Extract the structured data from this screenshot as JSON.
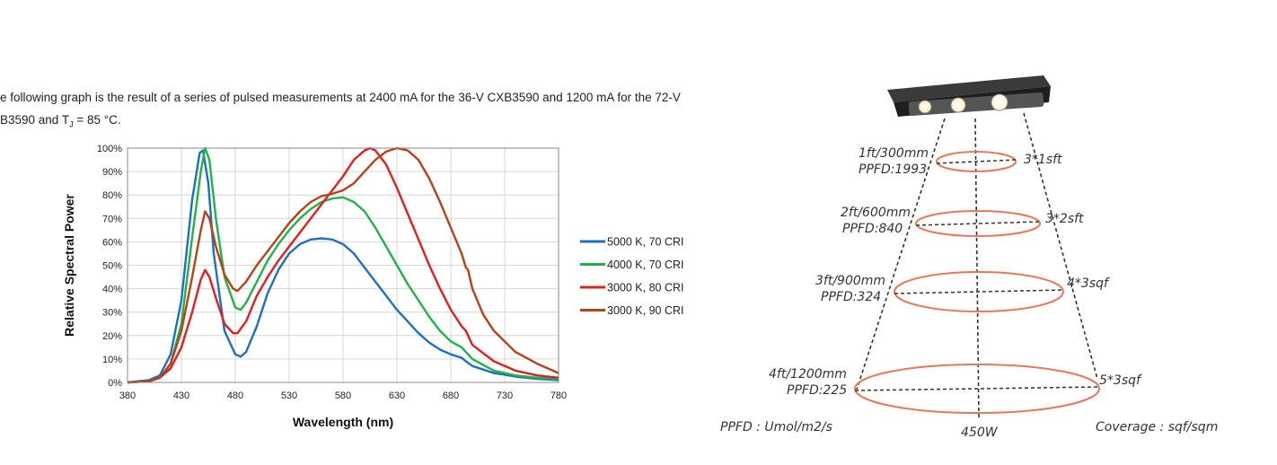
{
  "intro": {
    "line1": "e following graph is the result of a series of pulsed measurements at 2400 mA for the 36-V CXB3590 and 1200 mA for the 72-V",
    "line2_prefix": "B3590 and T",
    "line2_sub": "J",
    "line2_suffix": " = 85 °C."
  },
  "chart_data": {
    "type": "line",
    "xlabel": "Wavelength (nm)",
    "ylabel": "Relative Spectral Power",
    "xlim": [
      380,
      780
    ],
    "ylim": [
      0,
      100
    ],
    "xticks": [
      380,
      430,
      480,
      530,
      580,
      630,
      680,
      730,
      780
    ],
    "yticks": [
      0,
      10,
      20,
      30,
      40,
      50,
      60,
      70,
      80,
      90,
      100
    ],
    "ytick_suffix": "%",
    "grid": true,
    "legend_position": "right",
    "series": [
      {
        "name": "5000 K, 70 CRI",
        "color": "#1f6fbf",
        "points": [
          [
            380,
            0
          ],
          [
            400,
            1
          ],
          [
            410,
            3
          ],
          [
            420,
            12
          ],
          [
            430,
            35
          ],
          [
            440,
            78
          ],
          [
            447,
            98
          ],
          [
            450,
            99
          ],
          [
            455,
            85
          ],
          [
            460,
            55
          ],
          [
            470,
            22
          ],
          [
            480,
            12
          ],
          [
            485,
            11
          ],
          [
            490,
            13
          ],
          [
            500,
            24
          ],
          [
            510,
            38
          ],
          [
            520,
            48
          ],
          [
            530,
            55
          ],
          [
            540,
            59
          ],
          [
            550,
            61
          ],
          [
            560,
            61.5
          ],
          [
            570,
            61
          ],
          [
            580,
            59
          ],
          [
            590,
            55
          ],
          [
            600,
            49
          ],
          [
            610,
            43
          ],
          [
            620,
            37
          ],
          [
            630,
            31
          ],
          [
            640,
            26
          ],
          [
            650,
            21
          ],
          [
            660,
            17
          ],
          [
            670,
            14
          ],
          [
            680,
            12
          ],
          [
            690,
            10.5
          ],
          [
            694,
            9
          ],
          [
            700,
            7
          ],
          [
            720,
            4
          ],
          [
            740,
            2.5
          ],
          [
            760,
            1.5
          ],
          [
            780,
            1
          ]
        ]
      },
      {
        "name": "4000 K, 70 CRI",
        "color": "#22b14c",
        "points": [
          [
            380,
            0
          ],
          [
            400,
            0.5
          ],
          [
            410,
            2
          ],
          [
            420,
            8
          ],
          [
            430,
            25
          ],
          [
            440,
            62
          ],
          [
            448,
            90
          ],
          [
            452,
            100
          ],
          [
            456,
            95
          ],
          [
            462,
            70
          ],
          [
            470,
            45
          ],
          [
            480,
            32
          ],
          [
            485,
            31
          ],
          [
            490,
            34
          ],
          [
            500,
            43
          ],
          [
            510,
            52
          ],
          [
            520,
            59
          ],
          [
            530,
            65
          ],
          [
            540,
            70
          ],
          [
            550,
            74
          ],
          [
            560,
            77
          ],
          [
            570,
            78.5
          ],
          [
            580,
            79
          ],
          [
            590,
            77
          ],
          [
            600,
            73
          ],
          [
            610,
            66
          ],
          [
            620,
            58
          ],
          [
            630,
            50
          ],
          [
            640,
            42
          ],
          [
            650,
            35
          ],
          [
            660,
            28
          ],
          [
            670,
            22
          ],
          [
            680,
            17.5
          ],
          [
            690,
            15
          ],
          [
            694,
            13
          ],
          [
            700,
            10
          ],
          [
            720,
            5
          ],
          [
            740,
            3
          ],
          [
            760,
            2
          ],
          [
            780,
            1.5
          ]
        ]
      },
      {
        "name": "3000 K, 80 CRI",
        "color": "#e02020",
        "points": [
          [
            380,
            0
          ],
          [
            400,
            0.5
          ],
          [
            410,
            2
          ],
          [
            420,
            6
          ],
          [
            430,
            15
          ],
          [
            440,
            30
          ],
          [
            448,
            44
          ],
          [
            452,
            48
          ],
          [
            456,
            45
          ],
          [
            462,
            36
          ],
          [
            470,
            25
          ],
          [
            478,
            21
          ],
          [
            482,
            21
          ],
          [
            490,
            26
          ],
          [
            500,
            37
          ],
          [
            510,
            45
          ],
          [
            520,
            52
          ],
          [
            530,
            58
          ],
          [
            540,
            64
          ],
          [
            550,
            70
          ],
          [
            560,
            76
          ],
          [
            570,
            82
          ],
          [
            580,
            88
          ],
          [
            590,
            95
          ],
          [
            600,
            99
          ],
          [
            605,
            100
          ],
          [
            610,
            99
          ],
          [
            620,
            93
          ],
          [
            630,
            83
          ],
          [
            640,
            72
          ],
          [
            650,
            61
          ],
          [
            660,
            50
          ],
          [
            670,
            40
          ],
          [
            680,
            31
          ],
          [
            690,
            24
          ],
          [
            694,
            22
          ],
          [
            696,
            20
          ],
          [
            700,
            16
          ],
          [
            720,
            9
          ],
          [
            740,
            5
          ],
          [
            760,
            3
          ],
          [
            780,
            2
          ]
        ]
      },
      {
        "name": "3000 K, 90 CRI",
        "color": "#b5421a",
        "points": [
          [
            380,
            0
          ],
          [
            400,
            0.5
          ],
          [
            410,
            2
          ],
          [
            420,
            8
          ],
          [
            430,
            22
          ],
          [
            440,
            45
          ],
          [
            448,
            65
          ],
          [
            452,
            73
          ],
          [
            456,
            70
          ],
          [
            462,
            58
          ],
          [
            470,
            46
          ],
          [
            478,
            40
          ],
          [
            482,
            39
          ],
          [
            490,
            43
          ],
          [
            500,
            50
          ],
          [
            510,
            56
          ],
          [
            520,
            62
          ],
          [
            530,
            68
          ],
          [
            540,
            73
          ],
          [
            550,
            77
          ],
          [
            560,
            79.5
          ],
          [
            570,
            80.5
          ],
          [
            580,
            82
          ],
          [
            590,
            85
          ],
          [
            600,
            90
          ],
          [
            610,
            95
          ],
          [
            620,
            98.5
          ],
          [
            630,
            100
          ],
          [
            640,
            99
          ],
          [
            650,
            95
          ],
          [
            660,
            87
          ],
          [
            670,
            77
          ],
          [
            680,
            66
          ],
          [
            690,
            55
          ],
          [
            694,
            49
          ],
          [
            696,
            48
          ],
          [
            700,
            40
          ],
          [
            710,
            29
          ],
          [
            720,
            22
          ],
          [
            740,
            13
          ],
          [
            760,
            8
          ],
          [
            780,
            4
          ]
        ]
      }
    ]
  },
  "diagram": {
    "levels": [
      {
        "left_line1": "1ft/300mm",
        "left_line2": "PPFD:1993",
        "right": "3*1sft"
      },
      {
        "left_line1": "2ft/600mm",
        "left_line2": "PPFD:840",
        "right": "3*2sft"
      },
      {
        "left_line1": "3ft/900mm",
        "left_line2": "PPFD:324",
        "right": "4*3sqf"
      },
      {
        "left_line1": "4ft/1200mm",
        "left_line2": "PPFD:225",
        "right": "5*3sqf"
      }
    ],
    "footer_left": "PPFD : Umol/m2/s",
    "footer_center": "450W",
    "footer_right": "Coverage : sqf/sqm",
    "ellipse_color": "#e8765a"
  }
}
